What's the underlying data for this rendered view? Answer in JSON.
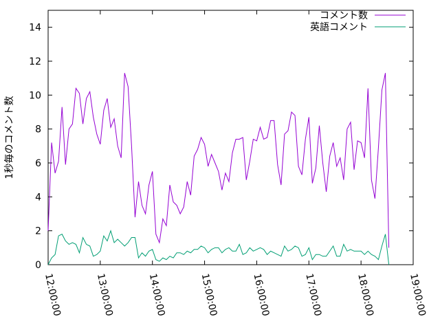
{
  "chart_data": {
    "type": "line",
    "ylabel": "1秒毎のコメント数",
    "xlabel": "",
    "title": "",
    "ylim": [
      0,
      15
    ],
    "xlim": [
      "12:00:00",
      "19:00:00"
    ],
    "x_ticks": [
      "12:00:00",
      "13:00:00",
      "14:00:00",
      "15:00:00",
      "16:00:00",
      "17:00:00",
      "18:00:00",
      "19:00:00"
    ],
    "y_ticks": [
      "0",
      "2",
      "4",
      "6",
      "8",
      "10",
      "12",
      "14"
    ],
    "legend_position": "top-right",
    "grid": false,
    "x_interval_minutes": 4,
    "series": [
      {
        "name": "コメント数",
        "color": "#9400d3",
        "values": [
          2.0,
          7.2,
          5.4,
          6.1,
          9.3,
          5.9,
          8.0,
          8.3,
          10.4,
          10.1,
          8.3,
          9.8,
          10.2,
          8.7,
          7.7,
          7.1,
          9.1,
          9.8,
          8.1,
          8.6,
          7.0,
          6.3,
          11.3,
          10.5,
          7.0,
          2.8,
          4.9,
          3.5,
          3.0,
          4.7,
          5.5,
          1.8,
          1.3,
          2.7,
          2.3,
          4.7,
          3.7,
          3.5,
          3.0,
          3.4,
          4.9,
          4.1,
          6.4,
          6.8,
          7.5,
          7.1,
          5.8,
          6.5,
          6.0,
          5.5,
          4.4,
          5.4,
          4.9,
          6.6,
          7.4,
          7.4,
          7.5,
          5.0,
          6.1,
          7.4,
          7.3,
          8.1,
          7.4,
          7.5,
          8.5,
          8.5,
          5.9,
          4.7,
          7.7,
          7.9,
          9.0,
          8.8,
          5.8,
          5.3,
          7.4,
          8.7,
          4.8,
          5.7,
          8.2,
          6.0,
          4.3,
          6.4,
          7.2,
          5.8,
          6.3,
          5.0,
          8.0,
          8.4,
          5.6,
          7.3,
          7.2,
          6.3,
          10.4,
          5.0,
          3.9,
          6.9,
          10.3,
          11.3,
          1.0
        ]
      },
      {
        "name": "英語コメント",
        "color": "#009e73",
        "values": [
          0.0,
          0.4,
          0.6,
          1.7,
          1.8,
          1.4,
          1.2,
          1.3,
          1.2,
          0.7,
          1.6,
          1.2,
          1.1,
          0.5,
          0.6,
          0.8,
          1.7,
          1.4,
          2.0,
          1.3,
          1.5,
          1.3,
          1.1,
          1.3,
          1.6,
          1.6,
          0.4,
          0.7,
          0.5,
          0.8,
          0.9,
          0.3,
          0.2,
          0.4,
          0.3,
          0.5,
          0.4,
          0.7,
          0.7,
          0.6,
          0.8,
          0.7,
          0.9,
          0.9,
          1.1,
          1.0,
          0.7,
          0.9,
          1.0,
          1.0,
          0.7,
          0.9,
          1.0,
          0.8,
          0.8,
          1.2,
          0.6,
          0.7,
          1.0,
          0.8,
          0.9,
          1.0,
          0.9,
          0.6,
          0.8,
          0.7,
          0.6,
          0.5,
          1.1,
          0.8,
          0.9,
          1.1,
          1.0,
          0.5,
          0.6,
          1.0,
          0.3,
          0.6,
          0.6,
          0.5,
          0.5,
          0.8,
          1.1,
          0.5,
          0.5,
          1.2,
          0.8,
          0.9,
          0.8,
          0.8,
          0.8,
          0.6,
          0.8,
          0.6,
          0.5,
          0.3,
          1.1,
          1.8,
          0.0
        ]
      }
    ]
  }
}
